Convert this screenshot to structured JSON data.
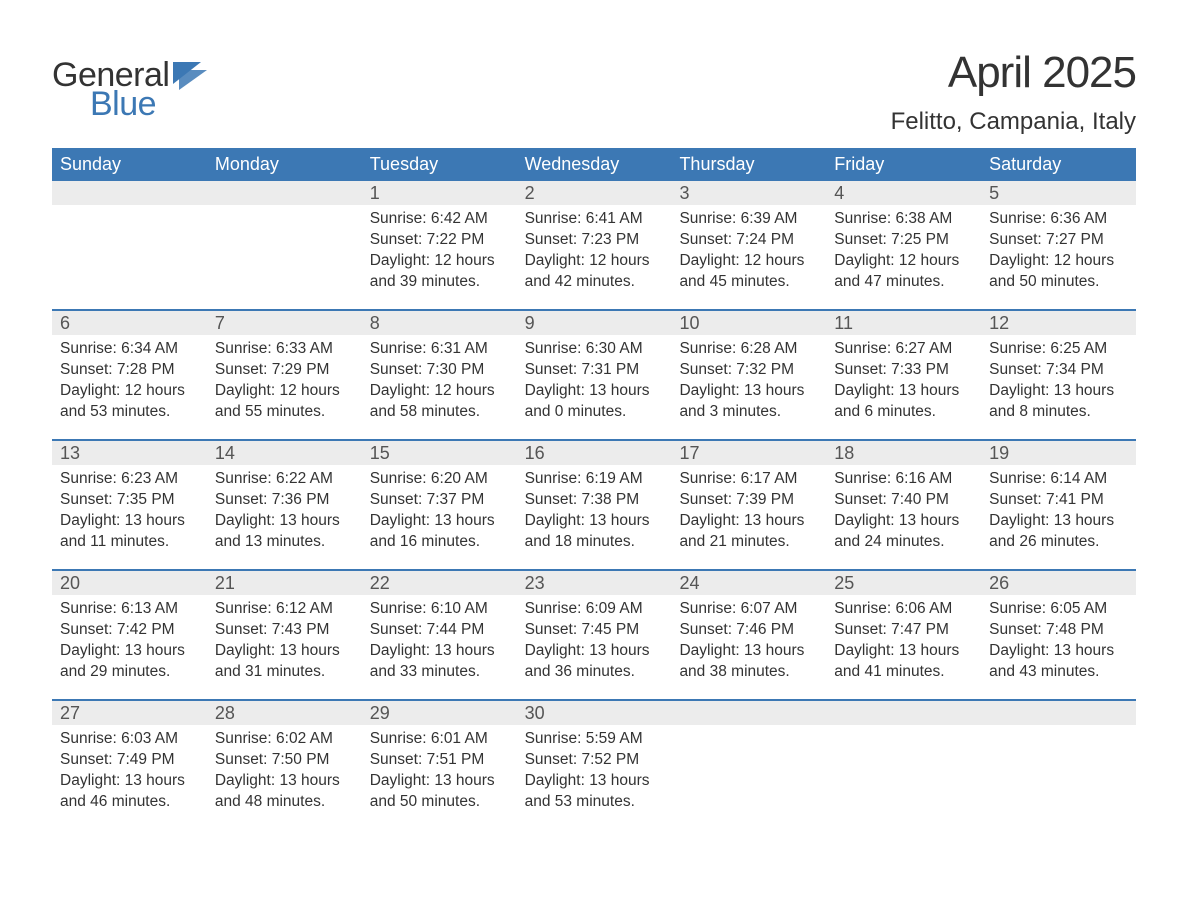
{
  "logo": {
    "word1": "General",
    "word2": "Blue",
    "accent_color": "#3c78b4"
  },
  "title": "April 2025",
  "location": "Felitto, Campania, Italy",
  "colors": {
    "header_bg": "#3c78b4",
    "header_text": "#ffffff",
    "daynum_band": "#ececec",
    "week_divider": "#3c78b4",
    "text": "#333333",
    "background": "#ffffff"
  },
  "typography": {
    "title_fontsize": 44,
    "location_fontsize": 24,
    "dow_fontsize": 18,
    "daynum_fontsize": 18,
    "body_fontsize": 15.5,
    "logo_fontsize": 34
  },
  "days_of_week": [
    "Sunday",
    "Monday",
    "Tuesday",
    "Wednesday",
    "Thursday",
    "Friday",
    "Saturday"
  ],
  "weeks": [
    [
      {
        "empty": true
      },
      {
        "empty": true
      },
      {
        "day": "1",
        "sunrise": "Sunrise: 6:42 AM",
        "sunset": "Sunset: 7:22 PM",
        "daylight1": "Daylight: 12 hours",
        "daylight2": "and 39 minutes."
      },
      {
        "day": "2",
        "sunrise": "Sunrise: 6:41 AM",
        "sunset": "Sunset: 7:23 PM",
        "daylight1": "Daylight: 12 hours",
        "daylight2": "and 42 minutes."
      },
      {
        "day": "3",
        "sunrise": "Sunrise: 6:39 AM",
        "sunset": "Sunset: 7:24 PM",
        "daylight1": "Daylight: 12 hours",
        "daylight2": "and 45 minutes."
      },
      {
        "day": "4",
        "sunrise": "Sunrise: 6:38 AM",
        "sunset": "Sunset: 7:25 PM",
        "daylight1": "Daylight: 12 hours",
        "daylight2": "and 47 minutes."
      },
      {
        "day": "5",
        "sunrise": "Sunrise: 6:36 AM",
        "sunset": "Sunset: 7:27 PM",
        "daylight1": "Daylight: 12 hours",
        "daylight2": "and 50 minutes."
      }
    ],
    [
      {
        "day": "6",
        "sunrise": "Sunrise: 6:34 AM",
        "sunset": "Sunset: 7:28 PM",
        "daylight1": "Daylight: 12 hours",
        "daylight2": "and 53 minutes."
      },
      {
        "day": "7",
        "sunrise": "Sunrise: 6:33 AM",
        "sunset": "Sunset: 7:29 PM",
        "daylight1": "Daylight: 12 hours",
        "daylight2": "and 55 minutes."
      },
      {
        "day": "8",
        "sunrise": "Sunrise: 6:31 AM",
        "sunset": "Sunset: 7:30 PM",
        "daylight1": "Daylight: 12 hours",
        "daylight2": "and 58 minutes."
      },
      {
        "day": "9",
        "sunrise": "Sunrise: 6:30 AM",
        "sunset": "Sunset: 7:31 PM",
        "daylight1": "Daylight: 13 hours",
        "daylight2": "and 0 minutes."
      },
      {
        "day": "10",
        "sunrise": "Sunrise: 6:28 AM",
        "sunset": "Sunset: 7:32 PM",
        "daylight1": "Daylight: 13 hours",
        "daylight2": "and 3 minutes."
      },
      {
        "day": "11",
        "sunrise": "Sunrise: 6:27 AM",
        "sunset": "Sunset: 7:33 PM",
        "daylight1": "Daylight: 13 hours",
        "daylight2": "and 6 minutes."
      },
      {
        "day": "12",
        "sunrise": "Sunrise: 6:25 AM",
        "sunset": "Sunset: 7:34 PM",
        "daylight1": "Daylight: 13 hours",
        "daylight2": "and 8 minutes."
      }
    ],
    [
      {
        "day": "13",
        "sunrise": "Sunrise: 6:23 AM",
        "sunset": "Sunset: 7:35 PM",
        "daylight1": "Daylight: 13 hours",
        "daylight2": "and 11 minutes."
      },
      {
        "day": "14",
        "sunrise": "Sunrise: 6:22 AM",
        "sunset": "Sunset: 7:36 PM",
        "daylight1": "Daylight: 13 hours",
        "daylight2": "and 13 minutes."
      },
      {
        "day": "15",
        "sunrise": "Sunrise: 6:20 AM",
        "sunset": "Sunset: 7:37 PM",
        "daylight1": "Daylight: 13 hours",
        "daylight2": "and 16 minutes."
      },
      {
        "day": "16",
        "sunrise": "Sunrise: 6:19 AM",
        "sunset": "Sunset: 7:38 PM",
        "daylight1": "Daylight: 13 hours",
        "daylight2": "and 18 minutes."
      },
      {
        "day": "17",
        "sunrise": "Sunrise: 6:17 AM",
        "sunset": "Sunset: 7:39 PM",
        "daylight1": "Daylight: 13 hours",
        "daylight2": "and 21 minutes."
      },
      {
        "day": "18",
        "sunrise": "Sunrise: 6:16 AM",
        "sunset": "Sunset: 7:40 PM",
        "daylight1": "Daylight: 13 hours",
        "daylight2": "and 24 minutes."
      },
      {
        "day": "19",
        "sunrise": "Sunrise: 6:14 AM",
        "sunset": "Sunset: 7:41 PM",
        "daylight1": "Daylight: 13 hours",
        "daylight2": "and 26 minutes."
      }
    ],
    [
      {
        "day": "20",
        "sunrise": "Sunrise: 6:13 AM",
        "sunset": "Sunset: 7:42 PM",
        "daylight1": "Daylight: 13 hours",
        "daylight2": "and 29 minutes."
      },
      {
        "day": "21",
        "sunrise": "Sunrise: 6:12 AM",
        "sunset": "Sunset: 7:43 PM",
        "daylight1": "Daylight: 13 hours",
        "daylight2": "and 31 minutes."
      },
      {
        "day": "22",
        "sunrise": "Sunrise: 6:10 AM",
        "sunset": "Sunset: 7:44 PM",
        "daylight1": "Daylight: 13 hours",
        "daylight2": "and 33 minutes."
      },
      {
        "day": "23",
        "sunrise": "Sunrise: 6:09 AM",
        "sunset": "Sunset: 7:45 PM",
        "daylight1": "Daylight: 13 hours",
        "daylight2": "and 36 minutes."
      },
      {
        "day": "24",
        "sunrise": "Sunrise: 6:07 AM",
        "sunset": "Sunset: 7:46 PM",
        "daylight1": "Daylight: 13 hours",
        "daylight2": "and 38 minutes."
      },
      {
        "day": "25",
        "sunrise": "Sunrise: 6:06 AM",
        "sunset": "Sunset: 7:47 PM",
        "daylight1": "Daylight: 13 hours",
        "daylight2": "and 41 minutes."
      },
      {
        "day": "26",
        "sunrise": "Sunrise: 6:05 AM",
        "sunset": "Sunset: 7:48 PM",
        "daylight1": "Daylight: 13 hours",
        "daylight2": "and 43 minutes."
      }
    ],
    [
      {
        "day": "27",
        "sunrise": "Sunrise: 6:03 AM",
        "sunset": "Sunset: 7:49 PM",
        "daylight1": "Daylight: 13 hours",
        "daylight2": "and 46 minutes."
      },
      {
        "day": "28",
        "sunrise": "Sunrise: 6:02 AM",
        "sunset": "Sunset: 7:50 PM",
        "daylight1": "Daylight: 13 hours",
        "daylight2": "and 48 minutes."
      },
      {
        "day": "29",
        "sunrise": "Sunrise: 6:01 AM",
        "sunset": "Sunset: 7:51 PM",
        "daylight1": "Daylight: 13 hours",
        "daylight2": "and 50 minutes."
      },
      {
        "day": "30",
        "sunrise": "Sunrise: 5:59 AM",
        "sunset": "Sunset: 7:52 PM",
        "daylight1": "Daylight: 13 hours",
        "daylight2": "and 53 minutes."
      },
      {
        "empty": true
      },
      {
        "empty": true
      },
      {
        "empty": true
      }
    ]
  ]
}
